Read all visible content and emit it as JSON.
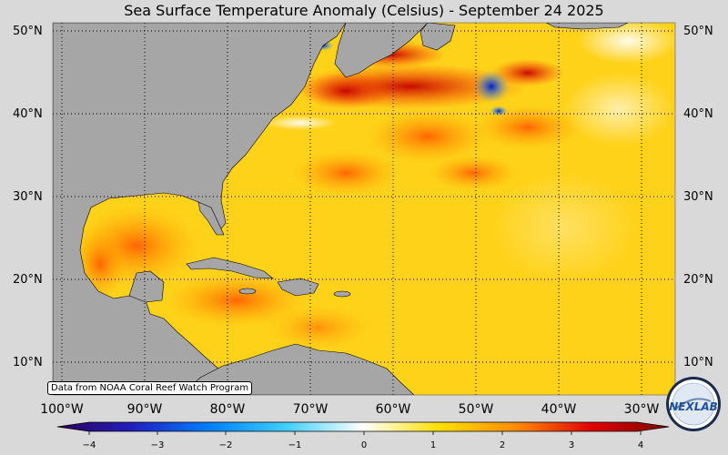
{
  "title": "Sea Surface Temperature Anomaly (Celsius) - September 24 2025",
  "credit": "Data from NOAA Coral Reef Watch Program",
  "lat_labels_left": [
    "50°N",
    "40°N",
    "30°N",
    "20°N",
    "10°N"
  ],
  "lat_labels_right": [
    "50°N",
    "40°N",
    "30°N",
    "20°N",
    "10°N"
  ],
  "lon_labels": [
    "100°W",
    "90°W",
    "80°W",
    "70°W",
    "60°W",
    "50°W",
    "40°W",
    "30°W"
  ],
  "colorbar": {
    "min": -4,
    "max": 4,
    "ticks": [
      "−4",
      "−3",
      "−2",
      "−1",
      "0",
      "1",
      "2",
      "3",
      "4"
    ],
    "colors": [
      "#30005a",
      "#2020c0",
      "#0080ff",
      "#40d0ff",
      "#ffffff",
      "#ffe000",
      "#ff8c00",
      "#e00000",
      "#800000"
    ]
  },
  "logo_text": "NEXLAB",
  "colors": {
    "land": "#a6a6a6",
    "background": "#d9d9d9"
  }
}
